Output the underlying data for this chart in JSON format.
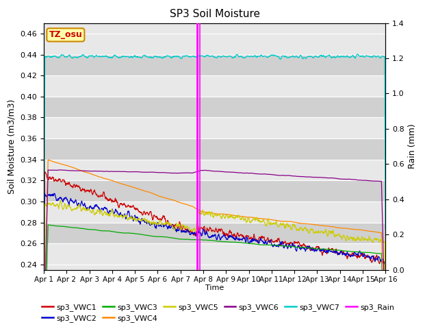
{
  "title": "SP3 Soil Moisture",
  "xlabel": "Time",
  "ylabel_left": "Soil Moisture (m3/m3)",
  "ylabel_right": "Rain (mm)",
  "ylim_left": [
    0.235,
    0.47
  ],
  "ylim_right": [
    0.0,
    1.4
  ],
  "yticks_left": [
    0.24,
    0.26,
    0.28,
    0.3,
    0.32,
    0.34,
    0.36,
    0.38,
    0.4,
    0.42,
    0.44,
    0.46
  ],
  "yticks_right": [
    0.0,
    0.2,
    0.4,
    0.6,
    0.8,
    1.0,
    1.2,
    1.4
  ],
  "n_points": 1200,
  "start_day": 0,
  "end_day": 15.0,
  "rain_spike_day": 6.72,
  "rain_spike_day2": 6.85,
  "tz_label": "TZ_osu",
  "tz_label_color": "#cc0000",
  "tz_box_color": "#ffffaa",
  "background_color": "#e8e8e8",
  "background_color2": "#d0d0d0",
  "colors": {
    "VWC1": "#cc0000",
    "VWC2": "#0000cc",
    "VWC3": "#00aa00",
    "VWC4": "#ff8800",
    "VWC5": "#cccc00",
    "VWC6": "#880088",
    "VWC7": "#00cccc",
    "Rain": "#ff00ff"
  },
  "x_tick_positions": [
    0,
    1,
    2,
    3,
    4,
    5,
    6,
    7,
    8,
    9,
    10,
    11,
    12,
    13,
    14,
    15
  ],
  "x_tick_labels": [
    "Apr 1",
    "Apr 2",
    "Apr 3",
    "Apr 4",
    "Apr 5",
    "Apr 6",
    "Apr 7",
    "Apr 8",
    "Apr 9",
    "Apr 10",
    "Apr 11",
    "Apr 12",
    "Apr 13",
    "Apr 14",
    "Apr 15",
    "Apr 16"
  ]
}
